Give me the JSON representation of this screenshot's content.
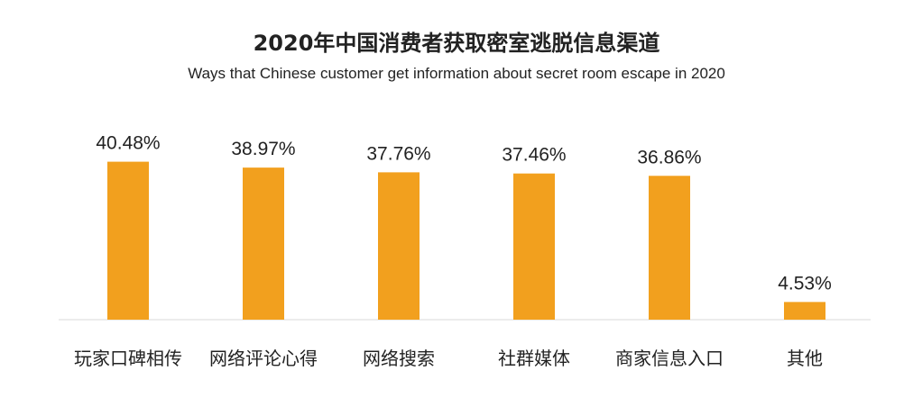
{
  "chart_data": {
    "type": "bar",
    "title": "2020年中国消费者获取密室逃脱信息渠道",
    "subtitle": "Ways that Chinese customer get information about secret room escape in 2020",
    "xlabel": "",
    "ylabel": "",
    "categories": [
      "玩家口碑相传",
      "网络评论心得",
      "网络搜索",
      "社群媒体",
      "商家信息入口",
      "其他"
    ],
    "values": [
      40.48,
      38.97,
      37.76,
      37.46,
      36.86,
      4.53
    ],
    "value_labels": [
      "40.48%",
      "38.97%",
      "37.76%",
      "37.46%",
      "36.86%",
      "4.53%"
    ],
    "ylim": [
      0,
      45
    ],
    "grid": false,
    "bar_color": "#F2A01E",
    "axis_color": "#D9D9D9"
  }
}
